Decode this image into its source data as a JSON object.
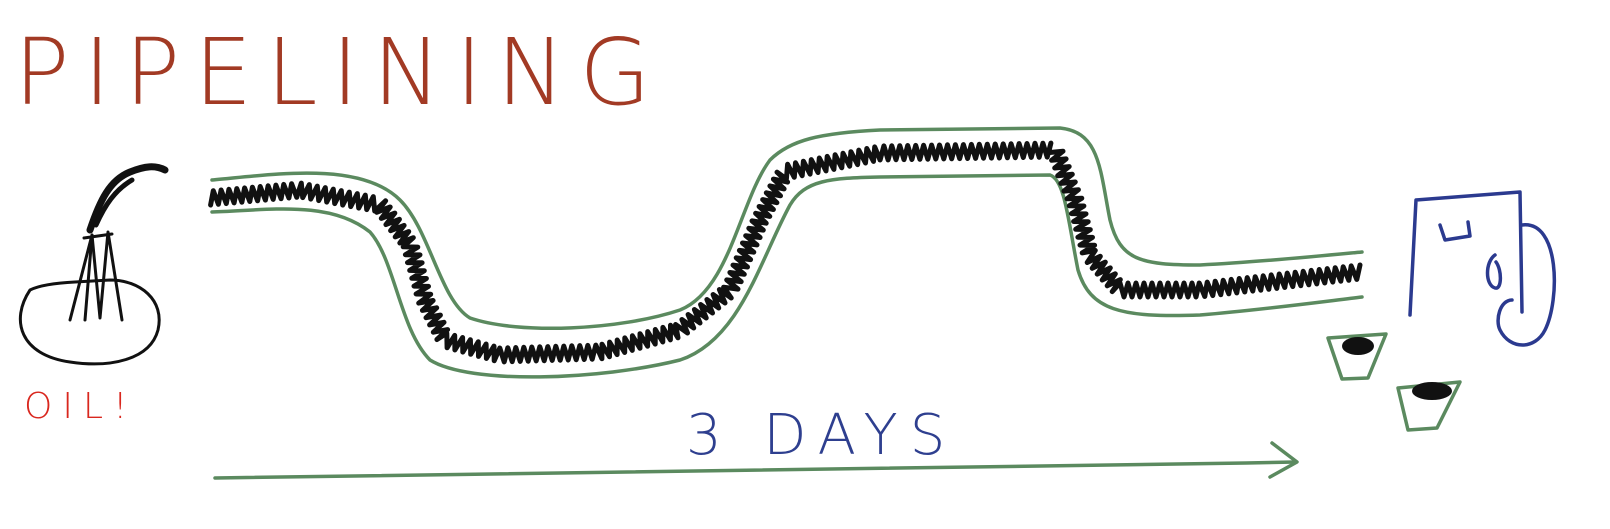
{
  "title": "PIPELINING",
  "source_label": "OIL!",
  "duration_label": "3 DAYS",
  "colors": {
    "title": "#a23a24",
    "source_label": "#d9271e",
    "duration_label": "#2e3f8f",
    "pipe": "#5b8a5f",
    "oil": "#111111",
    "can": "#2b3a8f",
    "cups": "#5b8a5f",
    "arrow": "#5b8a5f"
  }
}
